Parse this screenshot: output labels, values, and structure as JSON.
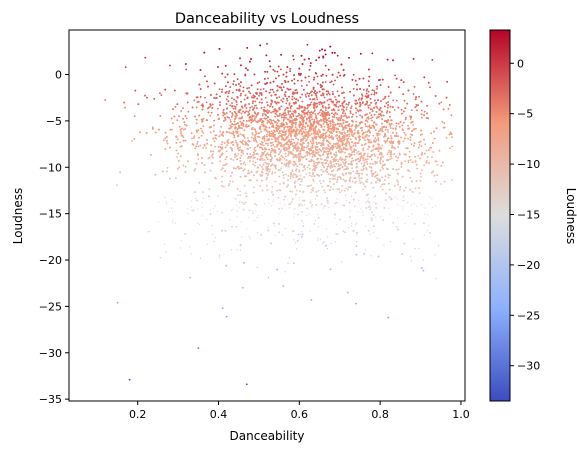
{
  "chart_data": {
    "type": "scatter",
    "title": "Danceability vs Loudness",
    "xlabel": "Danceability",
    "ylabel": "Loudness",
    "xlim": [
      0.03,
      1.01
    ],
    "ylim": [
      -35.2,
      4.8
    ],
    "x_ticks": [
      0.2,
      0.4,
      0.6,
      0.8,
      1.0
    ],
    "x_tick_labels": [
      "0.2",
      "0.4",
      "0.6",
      "0.8",
      "1.0"
    ],
    "y_ticks": [
      0,
      -5,
      -10,
      -15,
      -20,
      -25,
      -30,
      -35
    ],
    "y_tick_labels": [
      "0",
      "−5",
      "−10",
      "−15",
      "−20",
      "−25",
      "−30",
      "−35"
    ],
    "grid": false,
    "colormap": "coolwarm",
    "color_by": "Loudness",
    "colorbar": {
      "label": "Loudness",
      "range": [
        -33.5,
        3.3
      ],
      "ticks": [
        0,
        -5,
        -10,
        -15,
        -20,
        -25,
        -30
      ],
      "tick_labels": [
        "0",
        "−5",
        "−10",
        "−15",
        "−20",
        "−25",
        "−30"
      ]
    },
    "density": {
      "description_points": "dense elliptical cloud",
      "center_x": 0.62,
      "center_y": -6.5,
      "x_range": [
        0.07,
        0.98
      ],
      "y_range": [
        -33.5,
        3.3
      ]
    },
    "outliers": [
      {
        "x": 0.15,
        "y": -24.6
      },
      {
        "x": 0.35,
        "y": -29.5
      },
      {
        "x": 0.41,
        "y": -25.2
      },
      {
        "x": 0.42,
        "y": -26.1
      },
      {
        "x": 0.18,
        "y": -32.9
      },
      {
        "x": 0.47,
        "y": -33.4
      },
      {
        "x": 0.82,
        "y": -26.2
      },
      {
        "x": 0.46,
        "y": -23.0
      },
      {
        "x": 0.74,
        "y": -24.7
      },
      {
        "x": 0.63,
        "y": -24.3
      },
      {
        "x": 0.72,
        "y": -23.5
      },
      {
        "x": 0.56,
        "y": -22.8
      },
      {
        "x": 0.33,
        "y": -21.9
      },
      {
        "x": 0.52,
        "y": 3.3
      },
      {
        "x": 0.62,
        "y": 3.2
      }
    ]
  }
}
